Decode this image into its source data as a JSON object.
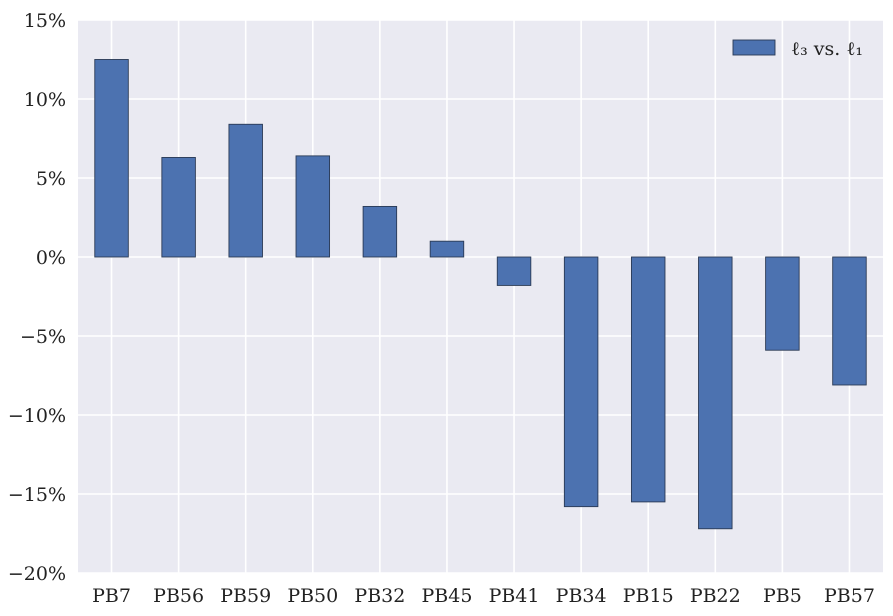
{
  "chart_data": {
    "type": "bar",
    "categories": [
      "PB7",
      "PB56",
      "PB59",
      "PB50",
      "PB32",
      "PB45",
      "PB41",
      "PB34",
      "PB15",
      "PB22",
      "PB5",
      "PB57"
    ],
    "series": [
      {
        "name": "ℓ₃ vs. ℓ₁",
        "values": [
          12.5,
          6.3,
          8.4,
          6.4,
          3.2,
          1.0,
          -1.8,
          -15.8,
          -15.5,
          -17.2,
          -5.9,
          -8.1
        ]
      }
    ],
    "ylim": [
      -20,
      15
    ],
    "yticks": [
      15,
      10,
      5,
      0,
      -5,
      -10,
      -15,
      -20
    ],
    "ytick_labels": [
      "15%",
      "10%",
      "5%",
      "0%",
      "−5%",
      "−10%",
      "−15%",
      "−20%"
    ],
    "grid": true,
    "legend_position": "top-right",
    "xlabel": "",
    "ylabel": "",
    "title": ""
  },
  "colors": {
    "background": "#eaeaf2",
    "grid": "#ffffff",
    "bar": "#4c72b0",
    "bar_edge": "#2a3a55"
  }
}
